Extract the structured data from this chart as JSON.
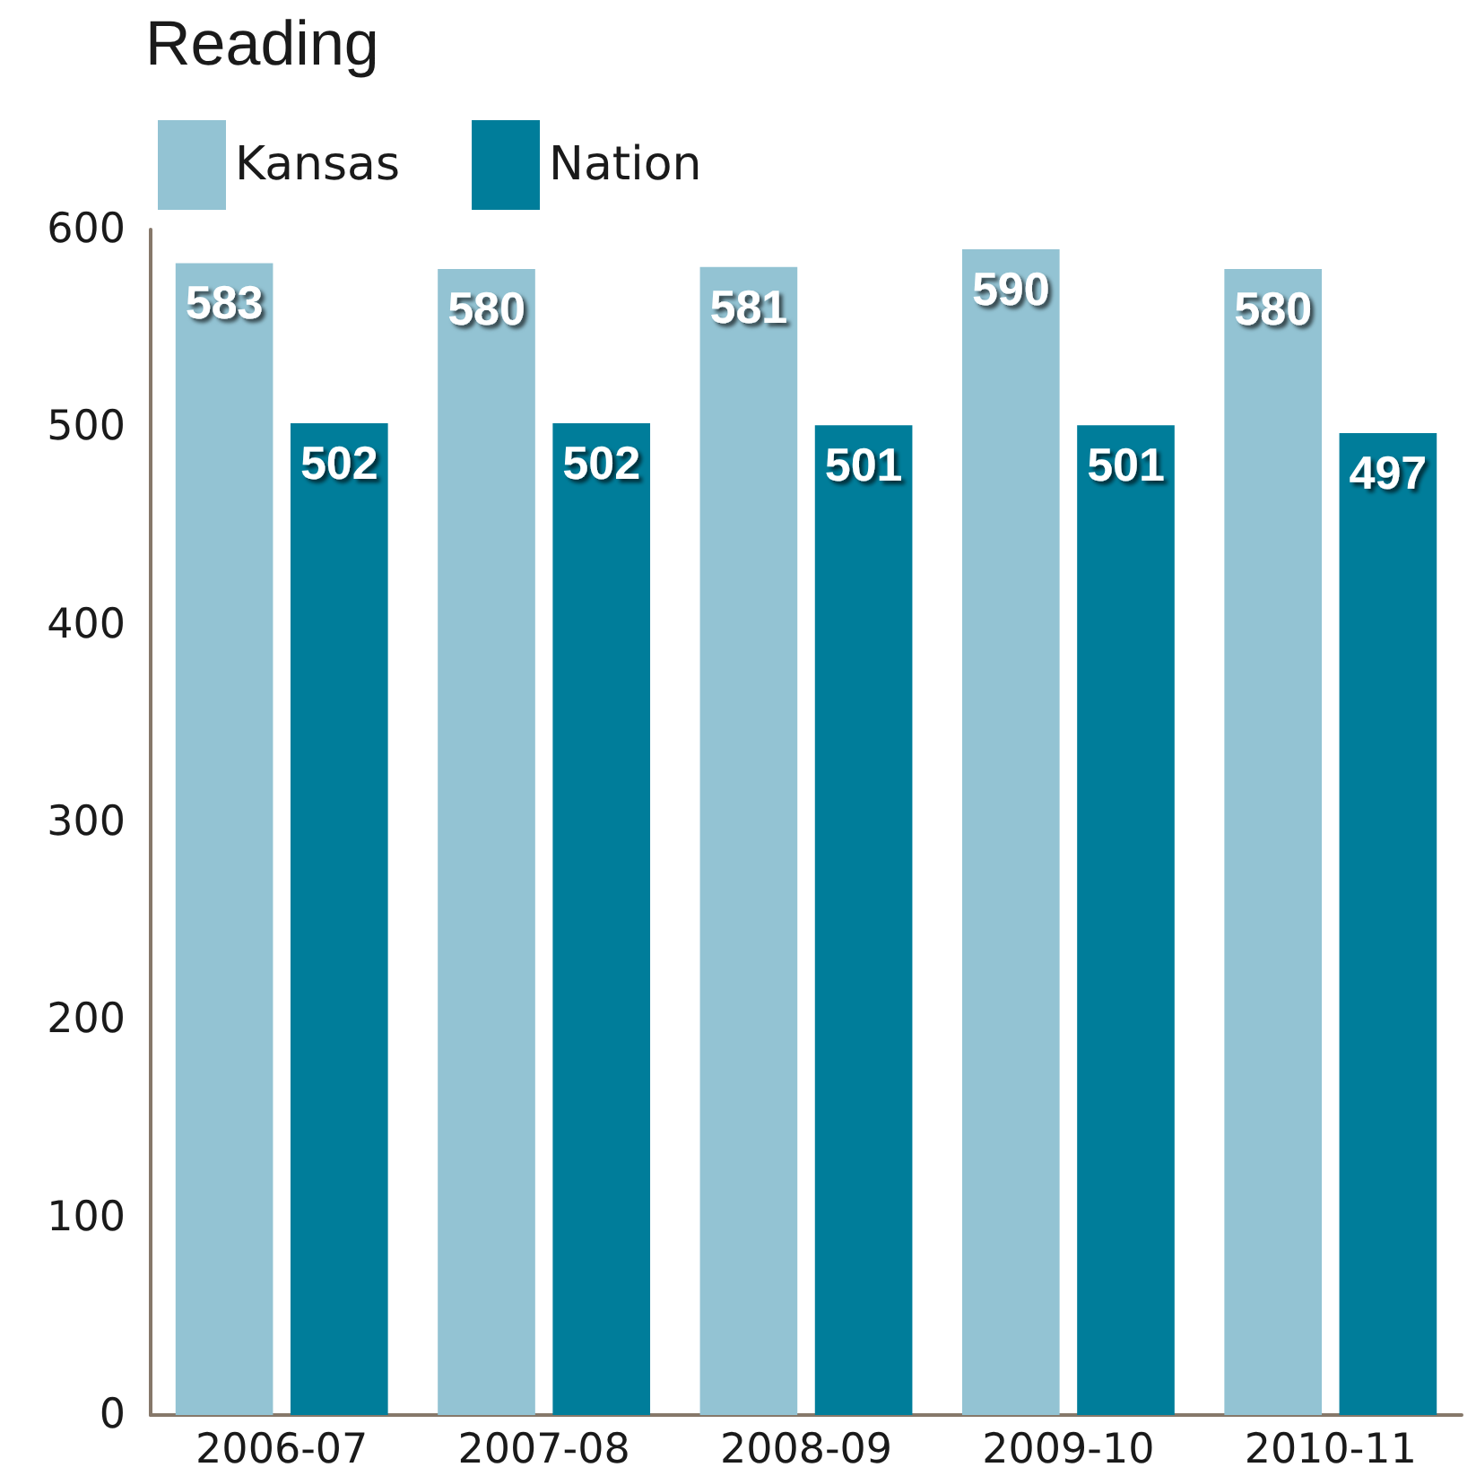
{
  "chart_data": {
    "type": "bar",
    "title": "Reading",
    "categories": [
      "2006-07",
      "2007-08",
      "2008-09",
      "2009-10",
      "2010-11"
    ],
    "series": [
      {
        "name": "Kansas",
        "color": "#93c3d3",
        "values": [
          583,
          580,
          581,
          590,
          580
        ]
      },
      {
        "name": "Nation",
        "color": "#007d9a",
        "values": [
          502,
          502,
          501,
          501,
          497
        ]
      }
    ],
    "ylim": [
      0,
      600
    ],
    "yticks": [
      0,
      100,
      200,
      300,
      400,
      500,
      600
    ],
    "grid": false,
    "legend": "top left",
    "data_labels": true
  }
}
